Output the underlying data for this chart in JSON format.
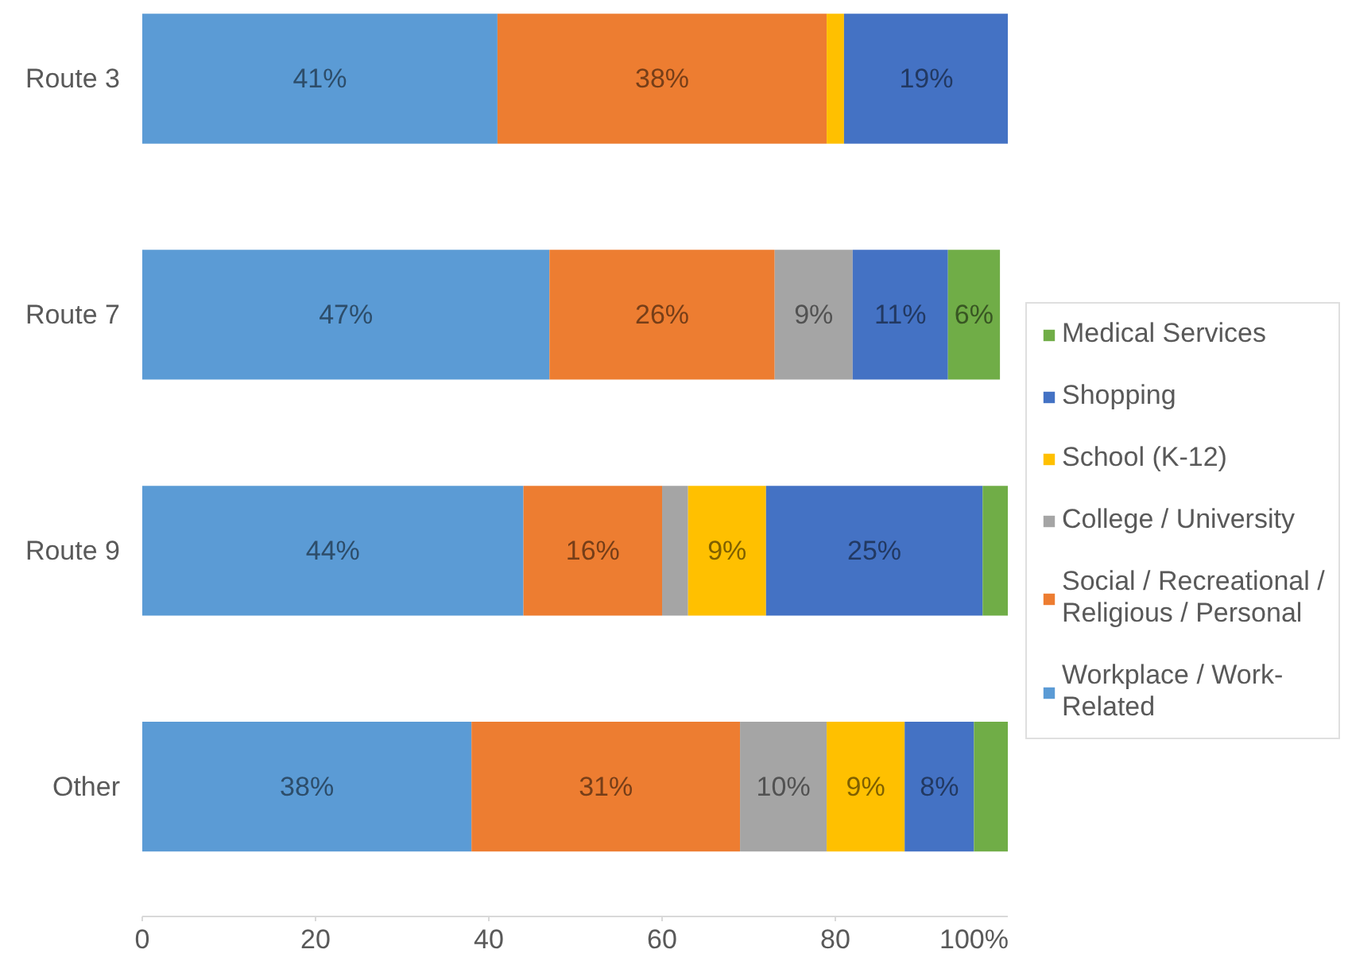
{
  "chart_data": {
    "type": "bar",
    "orientation": "horizontal",
    "stacked": true,
    "categories": [
      "Route 3",
      "Route 7",
      "Route 9",
      "Other"
    ],
    "xlim": [
      0,
      100
    ],
    "xticks": [
      0,
      20,
      40,
      60,
      80,
      {
        "value": 100,
        "label": "100%"
      }
    ],
    "legend": "right",
    "series": [
      {
        "name": "Workplace / Work-Related",
        "color": "#5b9bd5",
        "values": [
          41,
          47,
          44,
          38
        ],
        "value_labels": [
          "41%",
          "47%",
          "44%",
          "38%"
        ]
      },
      {
        "name": "Social / Recreational / Religious / Personal",
        "color": "#ed7d31",
        "values": [
          38,
          26,
          16,
          31
        ],
        "value_labels": [
          "38%",
          "26%",
          "16%",
          "31%"
        ]
      },
      {
        "name": "College / University",
        "color": "#a5a5a5",
        "values": [
          null,
          9,
          3,
          10
        ],
        "value_labels": [
          null,
          "9%",
          null,
          "10%"
        ]
      },
      {
        "name": "School (K-12)",
        "color": "#ffc000",
        "values": [
          2,
          null,
          9,
          9
        ],
        "value_labels": [
          null,
          null,
          "9%",
          "9%"
        ]
      },
      {
        "name": "Shopping",
        "color": "#4472c4",
        "values": [
          19,
          11,
          25,
          8
        ],
        "value_labels": [
          "19%",
          "11%",
          "25%",
          "8%"
        ]
      },
      {
        "name": "Medical Services",
        "color": "#70ad47",
        "values": [
          null,
          6,
          3,
          4
        ],
        "value_labels": [
          null,
          "6%",
          null,
          null
        ]
      }
    ]
  }
}
